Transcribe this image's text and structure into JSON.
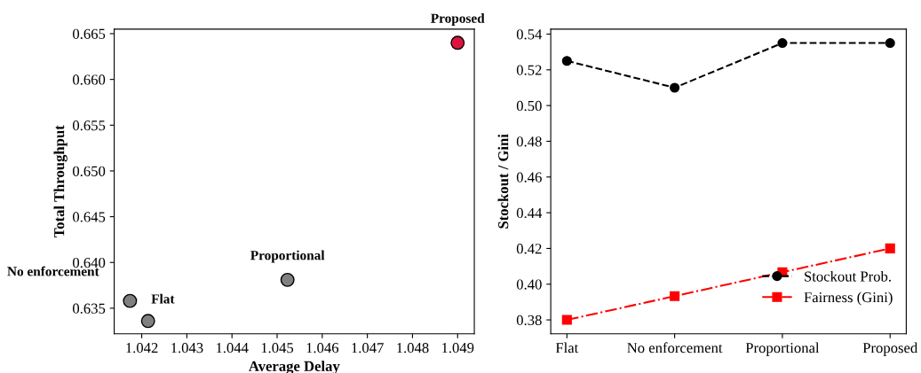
{
  "chart_data": [
    {
      "type": "scatter",
      "xlabel": "Average Delay",
      "ylabel": "Total Throughput",
      "x": [
        1.04174,
        1.04214,
        1.04523,
        1.049
      ],
      "values": [
        0.6358,
        0.6336,
        0.6381,
        0.664
      ],
      "colors": [
        "#808080",
        "#808080",
        "#808080",
        "#dc143c"
      ],
      "annotations": [
        {
          "text": "No enforcement",
          "x": 1.04174,
          "y": 0.6358
        },
        {
          "text": "Flat",
          "x": 1.04214,
          "y": 0.6336
        },
        {
          "text": "Proportional",
          "x": 1.04523,
          "y": 0.6381
        },
        {
          "text": "Proposed",
          "x": 1.049,
          "y": 0.664
        }
      ],
      "xlim": [
        1.04139,
        1.04937
      ],
      "xticks": [
        1.042,
        1.043,
        1.044,
        1.045,
        1.046,
        1.047,
        1.048,
        1.049
      ],
      "ylim": [
        0.6322,
        0.6655
      ],
      "yticks": [
        0.635,
        {
          "value": 0.64,
          "label": "0.640"
        },
        0.645,
        {
          "value": 0.65,
          "label": "0.650"
        },
        0.655,
        {
          "value": 0.66,
          "label": "0.660"
        },
        0.665
      ]
    },
    {
      "type": "line",
      "ylabel": "Stockout / Gini",
      "categories": [
        "Flat",
        "No enforcement",
        "Proportional",
        "Proposed"
      ],
      "series": [
        {
          "name": "Stockout Prob.",
          "color": "#000000",
          "values": [
            0.525,
            0.51,
            0.535,
            0.535
          ],
          "marker": "circle",
          "line_style": "dashed"
        },
        {
          "name": "Fairness (Gini)",
          "color": "#ff0000",
          "values": [
            0.38,
            0.3933,
            0.4067,
            0.42
          ],
          "marker": "square",
          "line_style": "dashdot"
        }
      ],
      "ylim": [
        0.3722,
        0.5428
      ],
      "yticks": [
        0.38,
        {
          "value": 0.4,
          "label": "0.40"
        },
        0.42,
        0.44,
        0.46,
        0.48,
        {
          "value": 0.5,
          "label": "0.50"
        },
        0.52,
        0.54
      ],
      "legend": "bottom right"
    }
  ]
}
